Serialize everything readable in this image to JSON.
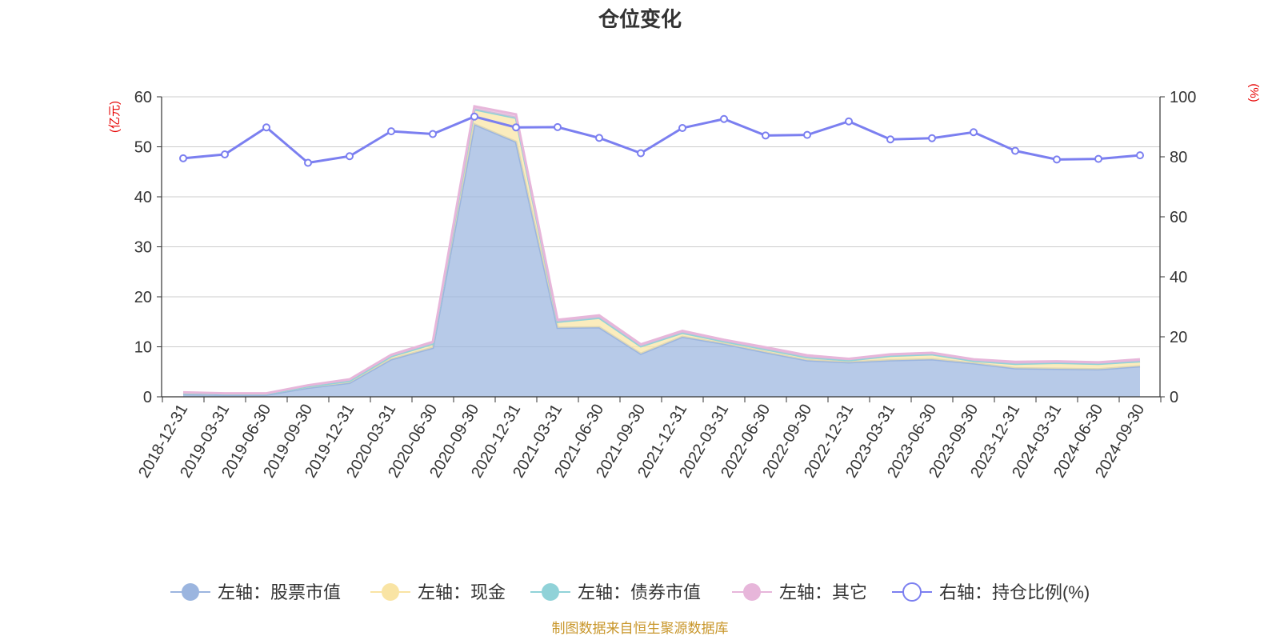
{
  "chart_data": {
    "type": "area",
    "title": "仓位变化",
    "left_axis_unit": "(亿元)",
    "right_axis_unit": "(%)",
    "left_ylim": [
      0,
      60
    ],
    "left_ticks": [
      0,
      10,
      20,
      30,
      40,
      50,
      60
    ],
    "right_ylim": [
      0,
      100
    ],
    "right_ticks": [
      0,
      20,
      40,
      60,
      80,
      100
    ],
    "categories": [
      "2018-12-31",
      "2019-03-31",
      "2019-06-30",
      "2019-09-30",
      "2019-12-31",
      "2020-03-31",
      "2020-06-30",
      "2020-09-30",
      "2020-12-31",
      "2021-03-31",
      "2021-06-30",
      "2021-09-30",
      "2021-12-31",
      "2022-03-31",
      "2022-06-30",
      "2022-09-30",
      "2022-12-31",
      "2023-03-31",
      "2023-06-30",
      "2023-09-30",
      "2023-12-31",
      "2024-03-31",
      "2024-06-30",
      "2024-09-30"
    ],
    "series": [
      {
        "name": "左轴：股票市值",
        "axis": "left",
        "color": "#9bb5df",
        "values": [
          0.5,
          0.4,
          0.4,
          1.8,
          2.8,
          7.5,
          9.8,
          54.5,
          51,
          13.8,
          13.9,
          8.6,
          12,
          10.6,
          8.9,
          7.3,
          6.9,
          7.3,
          7.5,
          6.7,
          5.7,
          5.6,
          5.5,
          6.1
        ]
      },
      {
        "name": "左轴：现金",
        "axis": "left",
        "color": "#f9e4a4",
        "values": [
          0.3,
          0.2,
          0.2,
          0.3,
          0.4,
          0.6,
          0.8,
          3.0,
          4.8,
          1.2,
          1.9,
          1.5,
          0.8,
          0.5,
          0.6,
          0.6,
          0.4,
          0.9,
          1.0,
          0.5,
          0.9,
          1.2,
          1.1,
          1.0
        ]
      },
      {
        "name": "左轴：债券市值",
        "axis": "left",
        "color": "#90d2d8",
        "values": [
          0,
          0,
          0,
          0,
          0,
          0,
          0,
          0,
          0,
          0,
          0,
          0,
          0,
          0,
          0,
          0,
          0,
          0,
          0,
          0,
          0,
          0,
          0,
          0
        ]
      },
      {
        "name": "左轴：其它",
        "axis": "left",
        "color": "#e7b6da",
        "values": [
          0.1,
          0.1,
          0.1,
          0.2,
          0.3,
          0.3,
          0.4,
          0.6,
          0.7,
          0.4,
          0.5,
          0.4,
          0.4,
          0.3,
          0.4,
          0.4,
          0.3,
          0.3,
          0.3,
          0.3,
          0.4,
          0.3,
          0.3,
          0.4
        ]
      },
      {
        "name": "右轴：持仓比例(%)",
        "axis": "right",
        "color": "#7b7ff0",
        "values": [
          79.5,
          80.8,
          89.8,
          78.0,
          80.2,
          88.5,
          87.6,
          93.4,
          89.8,
          89.9,
          86.3,
          81.2,
          89.6,
          92.6,
          87.1,
          87.3,
          91.8,
          85.8,
          86.2,
          88.2,
          82.0,
          79.1,
          79.3,
          80.5
        ]
      }
    ]
  },
  "source_text": "制图数据来自恒生聚源数据库"
}
